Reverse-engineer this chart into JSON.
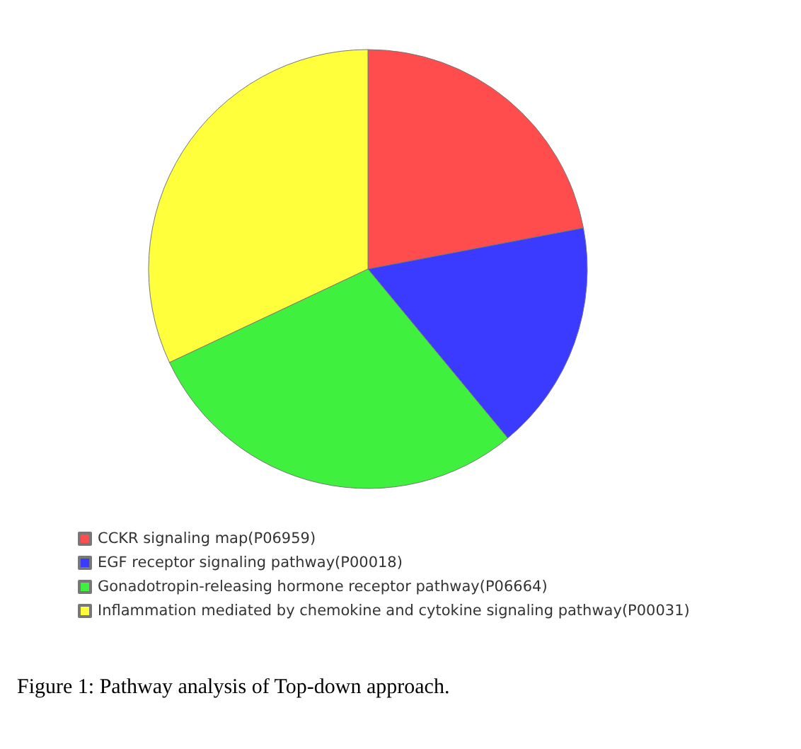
{
  "chart_data": {
    "type": "pie",
    "categories": [
      "CCKR signaling map(P06959)",
      "EGF receptor signaling pathway(P00018)",
      "Gonadotropin-releasing hormone receptor pathway(P06664)",
      "Inflammation mediated by chemokine and cytokine signaling pathway(P00031)"
    ],
    "values": [
      22,
      17,
      29,
      32
    ],
    "colors": [
      "#ff4d4d",
      "#3b3bff",
      "#3ff03f",
      "#ffff3b"
    ],
    "legend": "bottom left",
    "annotations": [
      "Figure 1: Pathway analysis of Top-down approach."
    ]
  }
}
